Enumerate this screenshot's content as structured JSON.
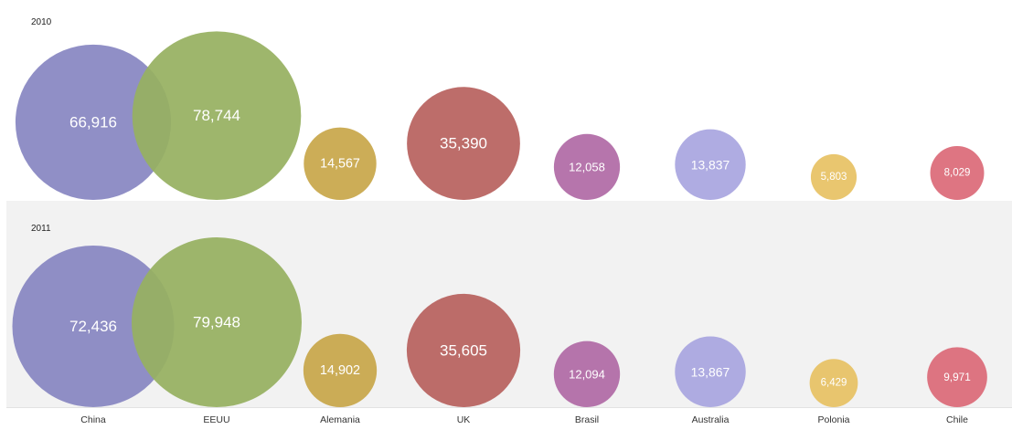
{
  "chart_data": {
    "type": "bubble",
    "categories": [
      "China",
      "EEUU",
      "Alemania",
      "UK",
      "Brasil",
      "Australia",
      "Polonia",
      "Chile"
    ],
    "colors": [
      "#8886c2",
      "#97b061",
      "#c8a74a",
      "#b8625f",
      "#b06aa6",
      "#a9a6e0",
      "#e7c264",
      "#dc6a78"
    ],
    "series": [
      {
        "name": "2010",
        "values": [
          66916,
          78744,
          14567,
          35390,
          12058,
          13837,
          5803,
          8029
        ],
        "labels": [
          "66,916",
          "78,744",
          "14,567",
          "35,390",
          "12,058",
          "13,837",
          "5,803",
          "8,029"
        ]
      },
      {
        "name": "2011",
        "values": [
          72436,
          79948,
          14902,
          35605,
          12094,
          13867,
          6429,
          9971
        ],
        "labels": [
          "72,436",
          "79,948",
          "14,902",
          "35,605",
          "12,094",
          "13,867",
          "6,429",
          "9,971"
        ]
      }
    ],
    "row_backgrounds": [
      "#ffffff",
      "#f2f2f2"
    ]
  }
}
